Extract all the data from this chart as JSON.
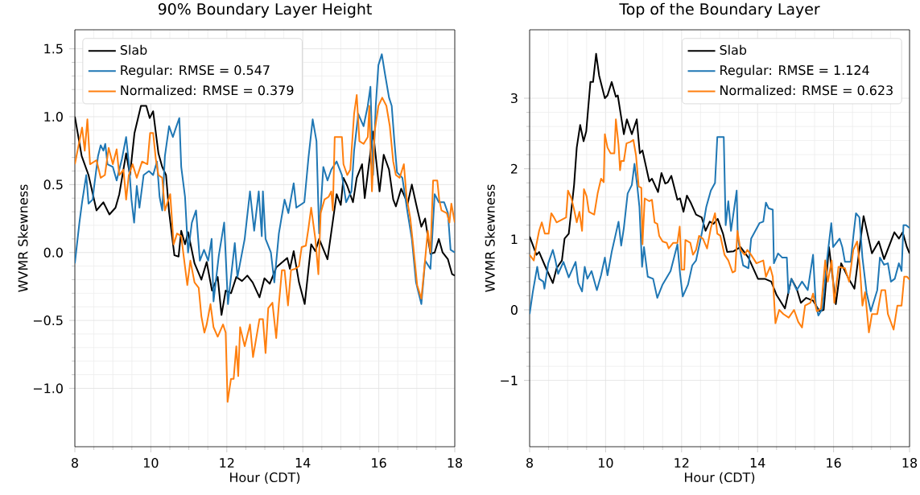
{
  "chart_data": [
    {
      "type": "line",
      "title": "90% Boundary Layer Height",
      "xlabel": "Hour (CDT)",
      "ylabel": "WVMR Skewness",
      "xlim": [
        8,
        18
      ],
      "ylim": [
        -1.43,
        1.64
      ],
      "xticks": [
        8,
        10,
        12,
        14,
        16,
        18
      ],
      "yticks": [
        {
          "value": -1.0,
          "label": "−1.0"
        },
        {
          "value": -0.5,
          "label": "−0.5"
        },
        {
          "value": 0.0,
          "label": "0.0"
        },
        {
          "value": 0.5,
          "label": "0.5"
        },
        {
          "value": 1.0,
          "label": "1.0"
        },
        {
          "value": 1.5,
          "label": "1.5"
        }
      ],
      "grid": true,
      "legend": "top left",
      "series": [
        {
          "name": "Slab",
          "color": "#000000",
          "x": [
            8.0,
            8.18,
            8.36,
            8.57,
            8.75,
            8.91,
            9.07,
            9.17,
            9.35,
            9.45,
            9.57,
            9.74,
            9.88,
            9.97,
            10.06,
            10.2,
            10.3,
            10.4,
            10.48,
            10.62,
            10.73,
            10.8,
            10.9,
            10.98,
            11.15,
            11.33,
            11.47,
            11.61,
            11.76,
            11.86,
            11.97,
            12.11,
            12.25,
            12.4,
            12.54,
            12.68,
            12.86,
            12.99,
            13.13,
            13.3,
            13.59,
            13.66,
            13.76,
            13.9,
            14.05,
            14.22,
            14.33,
            14.43,
            14.65,
            14.89,
            15.0,
            15.07,
            15.17,
            15.32,
            15.42,
            15.56,
            15.63,
            15.74,
            15.85,
            16.02,
            16.13,
            16.27,
            16.38,
            16.45,
            16.59,
            16.76,
            16.87,
            16.98,
            17.12,
            17.22,
            17.36,
            17.47,
            17.58,
            17.68,
            17.82,
            17.93,
            18.0
          ],
          "values": [
            1.0,
            0.71,
            0.57,
            0.31,
            0.37,
            0.28,
            0.33,
            0.43,
            0.73,
            0.57,
            0.88,
            1.08,
            1.08,
            0.99,
            1.04,
            0.73,
            0.63,
            0.57,
            0.3,
            -0.02,
            -0.03,
            0.16,
            0.06,
            0.15,
            -0.08,
            -0.2,
            -0.07,
            -0.28,
            -0.18,
            -0.46,
            -0.28,
            -0.3,
            -0.18,
            -0.21,
            -0.17,
            -0.22,
            -0.33,
            -0.19,
            -0.23,
            -0.11,
            -0.04,
            -0.12,
            0.01,
            -0.22,
            -0.38,
            0.06,
            0.01,
            0.1,
            -0.05,
            0.43,
            0.35,
            0.55,
            0.49,
            0.37,
            0.55,
            0.65,
            0.4,
            0.65,
            0.89,
            0.45,
            0.72,
            0.61,
            0.39,
            0.34,
            0.47,
            0.36,
            0.5,
            0.36,
            0.19,
            0.25,
            -0.01,
            0.0,
            0.1,
            0.0,
            -0.05,
            -0.16,
            -0.17
          ]
        },
        {
          "name": "Regular: RMSE = 0.547",
          "color": "#1f77b4",
          "x": [
            8.0,
            8.12,
            8.19,
            8.3,
            8.36,
            8.47,
            8.5,
            8.61,
            8.68,
            8.75,
            8.8,
            8.86,
            9.0,
            9.1,
            9.24,
            9.35,
            9.42,
            9.49,
            9.56,
            9.63,
            9.7,
            9.81,
            9.95,
            10.06,
            10.16,
            10.23,
            10.3,
            10.37,
            10.48,
            10.58,
            10.65,
            10.75,
            10.8,
            10.9,
            10.98,
            11.08,
            11.19,
            11.29,
            11.4,
            11.51,
            11.6,
            11.65,
            11.79,
            11.93,
            12.03,
            12.21,
            12.28,
            12.47,
            12.61,
            12.72,
            12.84,
            12.92,
            12.95,
            13.02,
            13.16,
            13.25,
            13.37,
            13.52,
            13.62,
            13.76,
            13.83,
            14.04,
            14.15,
            14.26,
            14.36,
            14.43,
            14.54,
            14.65,
            14.75,
            14.89,
            15.03,
            15.14,
            15.28,
            15.35,
            15.46,
            15.6,
            15.71,
            15.78,
            15.85,
            15.92,
            15.99,
            16.08,
            16.16,
            16.27,
            16.34,
            16.41,
            16.48,
            16.62,
            16.76,
            16.87,
            16.98,
            17.12,
            17.22,
            17.36,
            17.47,
            17.58,
            17.72,
            17.82,
            17.89,
            18.0
          ],
          "values": [
            -0.08,
            0.22,
            0.37,
            0.57,
            0.36,
            0.39,
            0.47,
            0.71,
            0.79,
            0.75,
            0.8,
            0.65,
            0.63,
            0.53,
            0.69,
            0.85,
            0.66,
            0.39,
            0.22,
            0.49,
            0.33,
            0.57,
            0.6,
            0.57,
            0.67,
            0.41,
            0.31,
            0.71,
            0.93,
            0.85,
            0.91,
            0.99,
            0.63,
            0.41,
            0.0,
            0.22,
            0.31,
            -0.06,
            0.02,
            -0.06,
            0.1,
            -0.36,
            -0.02,
            0.22,
            -0.38,
            0.07,
            -0.18,
            0.1,
            0.45,
            0.16,
            0.45,
            0.12,
            0.45,
            0.1,
            0.0,
            -0.22,
            0.14,
            0.39,
            0.29,
            0.51,
            0.33,
            0.37,
            0.7,
            0.98,
            0.82,
            0.14,
            0.63,
            0.53,
            0.61,
            0.67,
            0.57,
            0.37,
            0.45,
            0.75,
            1.02,
            0.93,
            1.08,
            1.22,
            0.57,
            1.08,
            1.38,
            1.46,
            1.32,
            1.14,
            1.08,
            0.82,
            0.59,
            0.55,
            0.29,
            0.1,
            -0.22,
            -0.38,
            -0.06,
            -0.12,
            0.43,
            0.37,
            0.37,
            0.29,
            0.02,
            0.0
          ]
        },
        {
          "name": "Normalized: RMSE = 0.379",
          "color": "#ff7f0e",
          "x": [
            8.0,
            8.12,
            8.19,
            8.26,
            8.33,
            8.4,
            8.57,
            8.68,
            8.79,
            8.89,
            9.0,
            9.1,
            9.17,
            9.28,
            9.35,
            9.42,
            9.52,
            9.63,
            9.77,
            9.91,
            9.98,
            10.06,
            10.13,
            10.2,
            10.3,
            10.37,
            10.44,
            10.51,
            10.6,
            10.69,
            10.8,
            10.87,
            10.96,
            11.04,
            11.15,
            11.26,
            11.33,
            11.41,
            11.47,
            11.57,
            11.65,
            11.76,
            11.9,
            11.97,
            12.02,
            12.11,
            12.18,
            12.25,
            12.3,
            12.35,
            12.47,
            12.61,
            12.69,
            12.86,
            12.95,
            13.02,
            13.09,
            13.2,
            13.3,
            13.37,
            13.45,
            13.52,
            13.61,
            13.69,
            13.8,
            13.9,
            13.97,
            14.08,
            14.15,
            14.22,
            14.33,
            14.41,
            14.47,
            14.57,
            14.68,
            14.75,
            14.79,
            14.84,
            15.03,
            15.07,
            15.17,
            15.25,
            15.35,
            15.42,
            15.49,
            15.6,
            15.71,
            15.75,
            15.82,
            15.89,
            15.99,
            16.09,
            16.2,
            16.29,
            16.38,
            16.45,
            16.55,
            16.66,
            16.73,
            16.83,
            16.91,
            17.01,
            17.12,
            17.19,
            17.29,
            17.36,
            17.43,
            17.54,
            17.59,
            17.65,
            17.79,
            17.86,
            17.91,
            18.0
          ],
          "values": [
            0.65,
            0.82,
            0.92,
            0.75,
            0.98,
            0.65,
            0.68,
            0.55,
            0.57,
            0.77,
            0.65,
            0.76,
            0.57,
            0.61,
            0.39,
            0.57,
            0.65,
            0.55,
            0.67,
            0.65,
            0.88,
            0.88,
            0.69,
            0.57,
            0.55,
            0.31,
            0.37,
            0.43,
            0.06,
            0.14,
            0.12,
            -0.04,
            -0.24,
            -0.06,
            -0.22,
            -0.26,
            -0.47,
            -0.59,
            -0.53,
            -0.38,
            -0.55,
            -0.62,
            -0.53,
            -0.59,
            -1.1,
            -0.93,
            -0.93,
            -0.69,
            -0.91,
            -0.55,
            -0.69,
            -0.53,
            -0.77,
            -0.49,
            -0.49,
            -0.74,
            -0.41,
            -0.37,
            -0.63,
            -0.38,
            -0.13,
            -0.13,
            -0.39,
            -0.13,
            -0.12,
            -0.1,
            0.04,
            0.05,
            0.18,
            0.33,
            0.1,
            -0.16,
            0.29,
            0.39,
            0.41,
            0.45,
            0.31,
            0.85,
            0.85,
            0.65,
            0.57,
            0.61,
            1.02,
            1.16,
            0.82,
            0.8,
            0.85,
            1.08,
            0.45,
            0.89,
            1.08,
            1.14,
            1.08,
            0.93,
            0.67,
            0.57,
            0.55,
            0.65,
            0.41,
            0.25,
            0.04,
            -0.24,
            -0.34,
            -0.14,
            0.16,
            0.0,
            0.53,
            0.53,
            0.39,
            0.31,
            0.29,
            0.22,
            0.36,
            0.22
          ]
        }
      ]
    },
    {
      "type": "line",
      "title": "Top of the Boundary Layer",
      "xlabel": "Hour (CDT)",
      "ylabel": "WVMR Skewness",
      "xlim": [
        8,
        18
      ],
      "ylim": [
        -1.94,
        3.97
      ],
      "xticks": [
        8,
        10,
        12,
        14,
        16,
        18
      ],
      "yticks": [
        {
          "value": -1,
          "label": "−1"
        },
        0,
        1,
        2,
        3
      ],
      "grid": true,
      "legend": "top right",
      "series": [
        {
          "name": "Slab",
          "color": "#000000",
          "x": [
            8.0,
            8.18,
            8.25,
            8.4,
            8.5,
            8.61,
            8.71,
            8.85,
            8.92,
            9.03,
            9.17,
            9.24,
            9.33,
            9.42,
            9.49,
            9.6,
            9.67,
            9.75,
            9.83,
            9.98,
            10.05,
            10.16,
            10.27,
            10.32,
            10.48,
            10.56,
            10.69,
            10.82,
            10.9,
            10.97,
            11.15,
            11.22,
            11.38,
            11.47,
            11.57,
            11.64,
            11.73,
            11.89,
            11.96,
            12.05,
            12.14,
            12.24,
            12.38,
            12.53,
            12.63,
            12.74,
            12.84,
            12.95,
            13.09,
            13.2,
            13.37,
            13.55,
            13.76,
            14.01,
            14.19,
            14.36,
            14.5,
            14.72,
            14.89,
            15.03,
            15.14,
            15.28,
            15.46,
            15.63,
            15.74,
            15.88,
            16.06,
            16.2,
            16.38,
            16.55,
            16.79,
            17.01,
            17.19,
            17.33,
            17.6,
            17.72,
            17.82,
            17.93,
            18.0
          ],
          "values": [
            1.04,
            0.78,
            0.82,
            0.63,
            0.51,
            0.38,
            0.59,
            0.7,
            1.01,
            1.08,
            1.77,
            2.3,
            2.62,
            2.39,
            2.53,
            3.23,
            3.23,
            3.63,
            3.32,
            3.0,
            3.04,
            3.23,
            3.02,
            3.04,
            2.49,
            2.7,
            2.49,
            2.7,
            2.22,
            2.26,
            1.82,
            1.86,
            1.67,
            1.94,
            1.79,
            1.81,
            1.9,
            1.56,
            1.58,
            1.39,
            1.62,
            1.52,
            1.35,
            1.31,
            1.12,
            1.25,
            1.22,
            1.29,
            1.08,
            0.82,
            0.83,
            0.89,
            0.74,
            0.44,
            0.44,
            0.4,
            0.21,
            0.02,
            0.44,
            0.3,
            0.1,
            0.17,
            0.13,
            -0.02,
            0.0,
            0.89,
            0.08,
            0.66,
            0.46,
            0.3,
            1.33,
            0.8,
            0.97,
            0.72,
            1.1,
            1.01,
            1.1,
            0.89,
            0.8
          ]
        },
        {
          "name": "Regular: RMSE = 1.124",
          "color": "#1f77b4",
          "x": [
            8.0,
            8.08,
            8.2,
            8.25,
            8.36,
            8.39,
            8.49,
            8.61,
            8.68,
            8.75,
            8.89,
            9.03,
            9.21,
            9.28,
            9.38,
            9.45,
            9.52,
            9.63,
            9.77,
            9.88,
            9.98,
            10.05,
            10.16,
            10.34,
            10.41,
            10.48,
            10.58,
            10.69,
            10.76,
            10.83,
            10.89,
            10.96,
            11.01,
            11.11,
            11.25,
            11.36,
            11.5,
            11.61,
            11.71,
            11.82,
            11.89,
            11.96,
            12.03,
            12.17,
            12.28,
            12.38,
            12.53,
            12.65,
            12.77,
            12.88,
            12.94,
            13.02,
            13.11,
            13.16,
            13.23,
            13.3,
            13.45,
            13.48,
            13.62,
            13.76,
            13.83,
            14.05,
            14.15,
            14.22,
            14.29,
            14.4,
            14.43,
            14.54,
            14.65,
            14.77,
            14.81,
            14.89,
            15.03,
            15.17,
            15.32,
            15.46,
            15.53,
            15.6,
            15.71,
            15.81,
            15.94,
            15.99,
            16.16,
            16.23,
            16.3,
            16.45,
            16.52,
            16.59,
            16.68,
            16.76,
            16.87,
            16.98,
            17.15,
            17.22,
            17.33,
            17.43,
            17.51,
            17.61,
            17.72,
            17.79,
            17.84,
            17.91,
            18.0
          ],
          "values": [
            -0.06,
            0.24,
            0.61,
            0.44,
            0.4,
            0.3,
            0.66,
            0.85,
            0.7,
            0.51,
            0.68,
            0.46,
            0.68,
            0.38,
            0.26,
            0.61,
            0.44,
            0.55,
            0.28,
            0.49,
            0.74,
            0.49,
            0.82,
            1.25,
            0.91,
            1.16,
            1.65,
            1.77,
            2.07,
            1.77,
            1.46,
            0.61,
            0.89,
            0.47,
            0.44,
            0.17,
            0.36,
            0.46,
            0.55,
            0.78,
            0.93,
            0.51,
            0.19,
            0.36,
            0.63,
            0.7,
            1.08,
            1.46,
            1.69,
            1.8,
            2.45,
            2.45,
            2.45,
            1.2,
            1.54,
            1.12,
            1.69,
            1.01,
            0.63,
            0.59,
            1.01,
            1.23,
            1.25,
            1.52,
            1.44,
            1.42,
            0.66,
            0.8,
            0.74,
            0.74,
            0.24,
            0.44,
            0.28,
            0.4,
            0.28,
            0.78,
            0.09,
            -0.08,
            0.02,
            0.63,
            1.23,
            0.89,
            1.01,
            0.89,
            0.68,
            0.68,
            1.04,
            1.37,
            1.31,
            0.74,
            0.24,
            -0.02,
            0.28,
            0.74,
            0.64,
            0.66,
            0.4,
            0.44,
            0.66,
            0.55,
            1.2,
            1.2,
            1.16
          ]
        },
        {
          "name": "Normalized: RMSE = 0.623",
          "color": "#ff7f0e",
          "x": [
            8.0,
            8.11,
            8.18,
            8.25,
            8.32,
            8.4,
            8.5,
            8.57,
            8.64,
            8.71,
            8.82,
            8.96,
            9.01,
            9.1,
            9.17,
            9.24,
            9.31,
            9.38,
            9.43,
            9.5,
            9.56,
            9.7,
            9.79,
            9.88,
            9.95,
            9.98,
            10.05,
            10.13,
            10.23,
            10.27,
            10.34,
            10.38,
            10.41,
            10.48,
            10.55,
            10.65,
            10.73,
            10.8,
            10.87,
            10.94,
            10.97,
            11.03,
            11.15,
            11.22,
            11.29,
            11.36,
            11.41,
            11.5,
            11.61,
            11.66,
            11.78,
            11.89,
            11.95,
            12.0,
            12.07,
            12.1,
            12.23,
            12.3,
            12.38,
            12.46,
            12.56,
            12.67,
            12.77,
            12.88,
            12.94,
            13.02,
            13.13,
            13.23,
            13.34,
            13.41,
            13.47,
            13.55,
            13.66,
            13.73,
            13.83,
            13.97,
            14.15,
            14.22,
            14.33,
            14.4,
            14.47,
            14.57,
            14.68,
            14.82,
            14.96,
            15.07,
            15.17,
            15.25,
            15.39,
            15.46,
            15.56,
            15.67,
            15.78,
            15.85,
            15.95,
            16.02,
            16.13,
            16.3,
            16.41,
            16.52,
            16.62,
            16.69,
            16.76,
            16.83,
            16.93,
            17.01,
            17.15,
            17.26,
            17.36,
            17.43,
            17.58,
            17.68,
            17.79,
            17.86,
            17.93,
            18.0
          ],
          "values": [
            0.78,
            0.7,
            0.93,
            1.12,
            1.24,
            1.08,
            1.08,
            1.37,
            1.31,
            1.24,
            1.27,
            1.31,
            1.69,
            1.58,
            1.42,
            1.24,
            1.39,
            1.12,
            1.71,
            1.61,
            1.39,
            1.35,
            1.65,
            1.86,
            1.81,
            2.49,
            2.3,
            2.22,
            2.22,
            2.7,
            2.34,
            1.98,
            2.11,
            2.11,
            2.36,
            2.38,
            2.41,
            2.19,
            1.75,
            1.73,
            0.93,
            1.58,
            1.54,
            1.56,
            1.24,
            1.22,
            1.05,
            0.97,
            0.95,
            0.87,
            0.95,
            0.95,
            1.18,
            0.57,
            0.57,
            0.99,
            0.95,
            0.78,
            0.85,
            1.05,
            1.01,
            0.87,
            1.16,
            1.37,
            1.08,
            1.05,
            0.78,
            0.7,
            0.53,
            0.55,
            1.12,
            0.85,
            0.78,
            0.85,
            0.78,
            0.66,
            0.7,
            0.47,
            0.61,
            0.47,
            -0.19,
            0.0,
            -0.06,
            -0.11,
            0.0,
            -0.17,
            -0.25,
            0.06,
            0.1,
            0.23,
            -0.02,
            0.02,
            0.7,
            0.4,
            0.7,
            0.1,
            0.61,
            0.59,
            0.4,
            0.85,
            0.97,
            0.63,
            0.06,
            0.25,
            -0.32,
            -0.06,
            -0.06,
            0.28,
            0.28,
            -0.06,
            -0.28,
            0.06,
            0.06,
            0.47,
            0.47,
            0.43
          ]
        }
      ]
    }
  ]
}
